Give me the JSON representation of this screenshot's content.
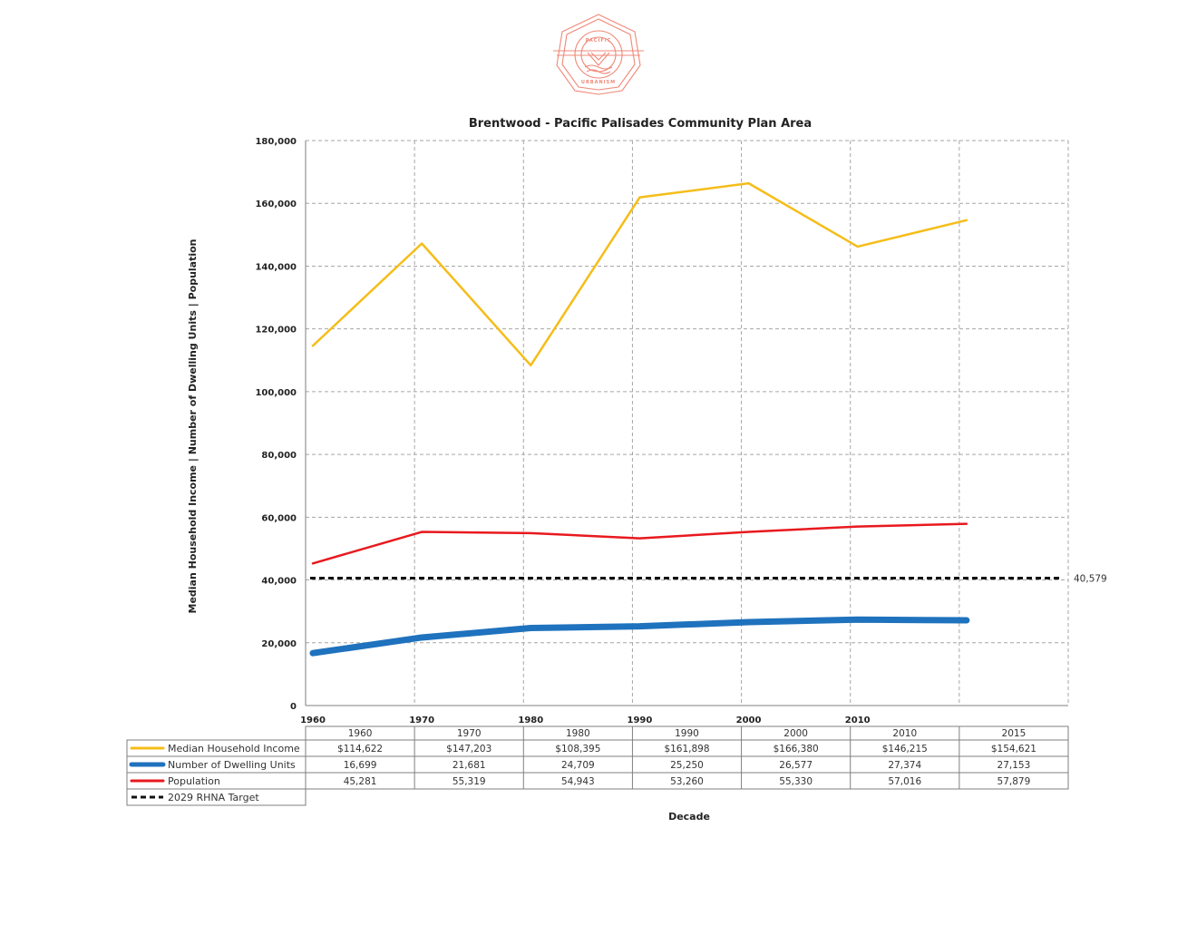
{
  "logo": {
    "top_text": "PACIFIC",
    "bottom_text": "URBANISM"
  },
  "chart_data": {
    "type": "line",
    "title": "Brentwood - Pacific Palisades Community Plan Area",
    "xlabel": "Decade",
    "ylabel": "Median Household Income | Number of Dwelling Units | Population",
    "ylim": [
      0,
      180000
    ],
    "yticks": [
      "0",
      "20,000",
      "40,000",
      "60,000",
      "80,000",
      "100,000",
      "120,000",
      "140,000",
      "160,000",
      "180,000"
    ],
    "axis_ticks": [
      "1960",
      "1970",
      "1980",
      "1990",
      "2000",
      "2010"
    ],
    "categories": [
      "1960",
      "1970",
      "1980",
      "1990",
      "2000",
      "2010",
      "2015"
    ],
    "grid": true,
    "series": [
      {
        "name": "Median Household Income",
        "color": "#f5bd19",
        "values": [
          114622,
          147203,
          108395,
          161898,
          166380,
          146215,
          154621
        ],
        "labels": [
          "$114,622",
          "$147,203",
          "$108,395",
          "$161,898",
          "$166,380",
          "$146,215",
          "$154,621"
        ]
      },
      {
        "name": "Number of Dwelling Units",
        "color": "#1f72bd",
        "values": [
          16699,
          21681,
          24709,
          25250,
          26577,
          27374,
          27153
        ],
        "labels": [
          "16,699",
          "21,681",
          "24,709",
          "25,250",
          "26,577",
          "27,374",
          "27,153"
        ]
      },
      {
        "name": "Population",
        "color": "#e8191e",
        "values": [
          45281,
          55319,
          54943,
          53260,
          55330,
          57016,
          57879
        ],
        "labels": [
          "45,281",
          "55,319",
          "54,943",
          "53,260",
          "55,330",
          "57,016",
          "57,879"
        ]
      }
    ],
    "target": {
      "name": "2029 RHNA Target",
      "color": "#111111",
      "value": 40579,
      "label": "40,579"
    }
  }
}
